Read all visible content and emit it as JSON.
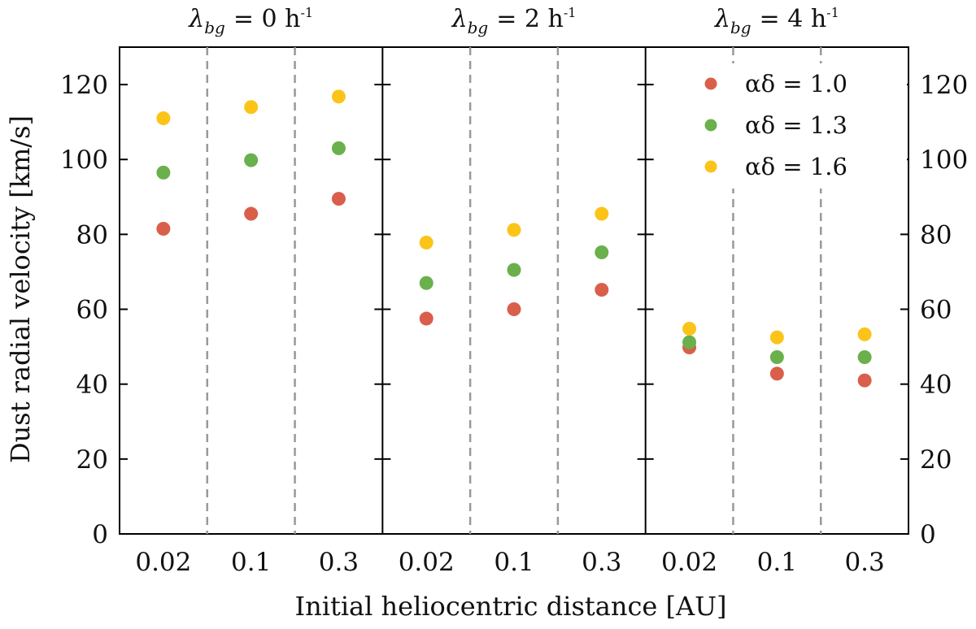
{
  "chart_data": {
    "type": "scatter",
    "xlabel": "Initial heliocentric distance [AU]",
    "ylabel": "Dust radial velocity [km/s]",
    "ylim": [
      0,
      130
    ],
    "yticks": [
      0,
      20,
      40,
      60,
      80,
      100,
      120
    ],
    "categories": [
      "0.02",
      "0.1",
      "0.3"
    ],
    "panels": [
      {
        "title": "λbg = 0 h-1",
        "title_lambda": "λ",
        "title_sub": "bg",
        "title_eq": "= 0 h",
        "title_sup": "-1",
        "series": [
          {
            "name": "αδ = 1.0",
            "values": [
              81.5,
              85.5,
              89.5
            ]
          },
          {
            "name": "αδ = 1.3",
            "values": [
              96.5,
              99.8,
              103.0
            ]
          },
          {
            "name": "αδ = 1.6",
            "values": [
              111.0,
              114.0,
              116.8
            ]
          }
        ]
      },
      {
        "title": "λbg = 2 h-1",
        "title_lambda": "λ",
        "title_sub": "bg",
        "title_eq": "= 2 h",
        "title_sup": "-1",
        "series": [
          {
            "name": "αδ = 1.0",
            "values": [
              57.5,
              60.0,
              65.2
            ]
          },
          {
            "name": "αδ = 1.3",
            "values": [
              67.0,
              70.5,
              75.2
            ]
          },
          {
            "name": "αδ = 1.6",
            "values": [
              77.8,
              81.2,
              85.5
            ]
          }
        ]
      },
      {
        "title": "λbg = 4 h-1",
        "title_lambda": "λ",
        "title_sub": "bg",
        "title_eq": "= 4 h",
        "title_sup": "-1",
        "series": [
          {
            "name": "αδ = 1.0",
            "values": [
              49.8,
              42.8,
              41.0
            ]
          },
          {
            "name": "αδ = 1.3",
            "values": [
              51.2,
              47.2,
              47.2
            ]
          },
          {
            "name": "αδ = 1.6",
            "values": [
              54.8,
              52.5,
              53.3
            ]
          }
        ]
      }
    ],
    "legend": {
      "position": "top-right",
      "entries": [
        {
          "label": "αδ = 1.0",
          "color": "#d95f4b"
        },
        {
          "label": "αδ = 1.3",
          "color": "#6ab04c"
        },
        {
          "label": "αδ = 1.6",
          "color": "#fcc419"
        }
      ]
    },
    "colors": [
      "#d95f4b",
      "#6ab04c",
      "#fcc419"
    ]
  }
}
